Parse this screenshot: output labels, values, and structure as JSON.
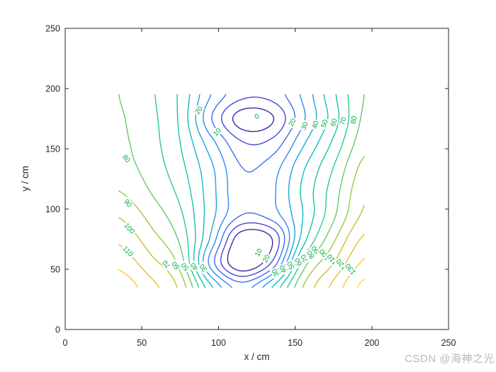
{
  "figure": {
    "watermark": "CSDN @海神之光",
    "watermark_color": "#b9b9b9",
    "background": "#ffffff"
  },
  "chart_data": {
    "type": "contour",
    "title": "",
    "xlabel": "x / cm",
    "ylabel": "y / cm",
    "xlim": [
      0,
      250
    ],
    "ylim": [
      0,
      250
    ],
    "xticks": [
      0,
      50,
      100,
      150,
      200,
      250
    ],
    "yticks": [
      0,
      50,
      100,
      150,
      200,
      250
    ],
    "grid_on": false,
    "axis_color": "#262626",
    "label_color": "#00ae41",
    "levels": [
      0,
      10,
      20,
      30,
      40,
      50,
      60,
      70,
      80,
      90,
      100,
      110,
      120,
      130
    ],
    "cmin": 0,
    "cmax": 135,
    "colormap": {
      "name": "parula",
      "stops": [
        "#3e26a8",
        "#4754ec",
        "#3481fb",
        "#19a5dc",
        "#12beb9",
        "#20c997",
        "#65cd62",
        "#abc739",
        "#e9b927",
        "#fec932",
        "#f9fb0e"
      ]
    },
    "grid_x": [
      35,
      55,
      75,
      95,
      115,
      135,
      155,
      175,
      195
    ],
    "grid_y": [
      35,
      55,
      75,
      95,
      115,
      135,
      155,
      175,
      195
    ],
    "values": [
      [
        127,
        114,
        97,
        52,
        26,
        50,
        90,
        113,
        133
      ],
      [
        117,
        104,
        86,
        26,
        -10,
        12,
        74,
        100,
        122
      ],
      [
        108,
        95,
        78,
        38,
        -8,
        0,
        55,
        88,
        112
      ],
      [
        99,
        87,
        72,
        44,
        20,
        25,
        50,
        78,
        102
      ],
      [
        90,
        80,
        67,
        44,
        22,
        28,
        52,
        75,
        98
      ],
      [
        84,
        76,
        63,
        42,
        20,
        25,
        48,
        70,
        93
      ],
      [
        82,
        74,
        60,
        34,
        11,
        13,
        38,
        62,
        86
      ],
      [
        81,
        73,
        58,
        21,
        -5,
        -1,
        28,
        55,
        82
      ],
      [
        80,
        72,
        58,
        30,
        13,
        14,
        32,
        58,
        80
      ]
    ],
    "labels": [
      {
        "v": "80",
        "x": 40,
        "y": 142,
        "a": 50
      },
      {
        "v": "90",
        "x": 41,
        "y": 105,
        "a": 50
      },
      {
        "v": "100",
        "x": 42,
        "y": 84,
        "a": 48
      },
      {
        "v": "110",
        "x": 41,
        "y": 65,
        "a": 46
      },
      {
        "v": "20",
        "x": 87,
        "y": 182,
        "a": -52
      },
      {
        "v": "10",
        "x": 99,
        "y": 164,
        "a": -48
      },
      {
        "v": "0",
        "x": 125,
        "y": 177,
        "a": -28
      },
      {
        "v": "20",
        "x": 148,
        "y": 172,
        "a": -62
      },
      {
        "v": "30",
        "x": 156,
        "y": 169,
        "a": -66
      },
      {
        "v": "40",
        "x": 163,
        "y": 170,
        "a": -70
      },
      {
        "v": "50",
        "x": 169,
        "y": 171,
        "a": -72
      },
      {
        "v": "60",
        "x": 175,
        "y": 172,
        "a": -74
      },
      {
        "v": "70",
        "x": 181,
        "y": 173,
        "a": -76
      },
      {
        "v": "80",
        "x": 188,
        "y": 174,
        "a": -78
      },
      {
        "v": "10",
        "x": 126,
        "y": 64,
        "a": -62
      },
      {
        "v": "20",
        "x": 131,
        "y": 59,
        "a": -62
      },
      {
        "v": "70",
        "x": 66,
        "y": 54,
        "a": -128
      },
      {
        "v": "60",
        "x": 72,
        "y": 53,
        "a": -128
      },
      {
        "v": "50",
        "x": 78,
        "y": 52,
        "a": -127
      },
      {
        "v": "40",
        "x": 84,
        "y": 52,
        "a": -126
      },
      {
        "v": "30",
        "x": 90,
        "y": 51,
        "a": -125
      },
      {
        "v": "30",
        "x": 137,
        "y": 47,
        "a": -115
      },
      {
        "v": "40",
        "x": 142,
        "y": 50,
        "a": -115
      },
      {
        "v": "50",
        "x": 147,
        "y": 53,
        "a": -117
      },
      {
        "v": "60",
        "x": 152,
        "y": 56,
        "a": -118
      },
      {
        "v": "70",
        "x": 156,
        "y": 59,
        "a": -120
      },
      {
        "v": "80",
        "x": 160,
        "y": 62,
        "a": -122
      },
      {
        "v": "90",
        "x": 163,
        "y": 66,
        "a": -128
      },
      {
        "v": "100",
        "x": 169,
        "y": 62,
        "a": -128
      },
      {
        "v": "110",
        "x": 174,
        "y": 58,
        "a": -128
      },
      {
        "v": "120",
        "x": 180,
        "y": 54,
        "a": -128
      },
      {
        "v": "130",
        "x": 186,
        "y": 50,
        "a": -128
      }
    ]
  }
}
